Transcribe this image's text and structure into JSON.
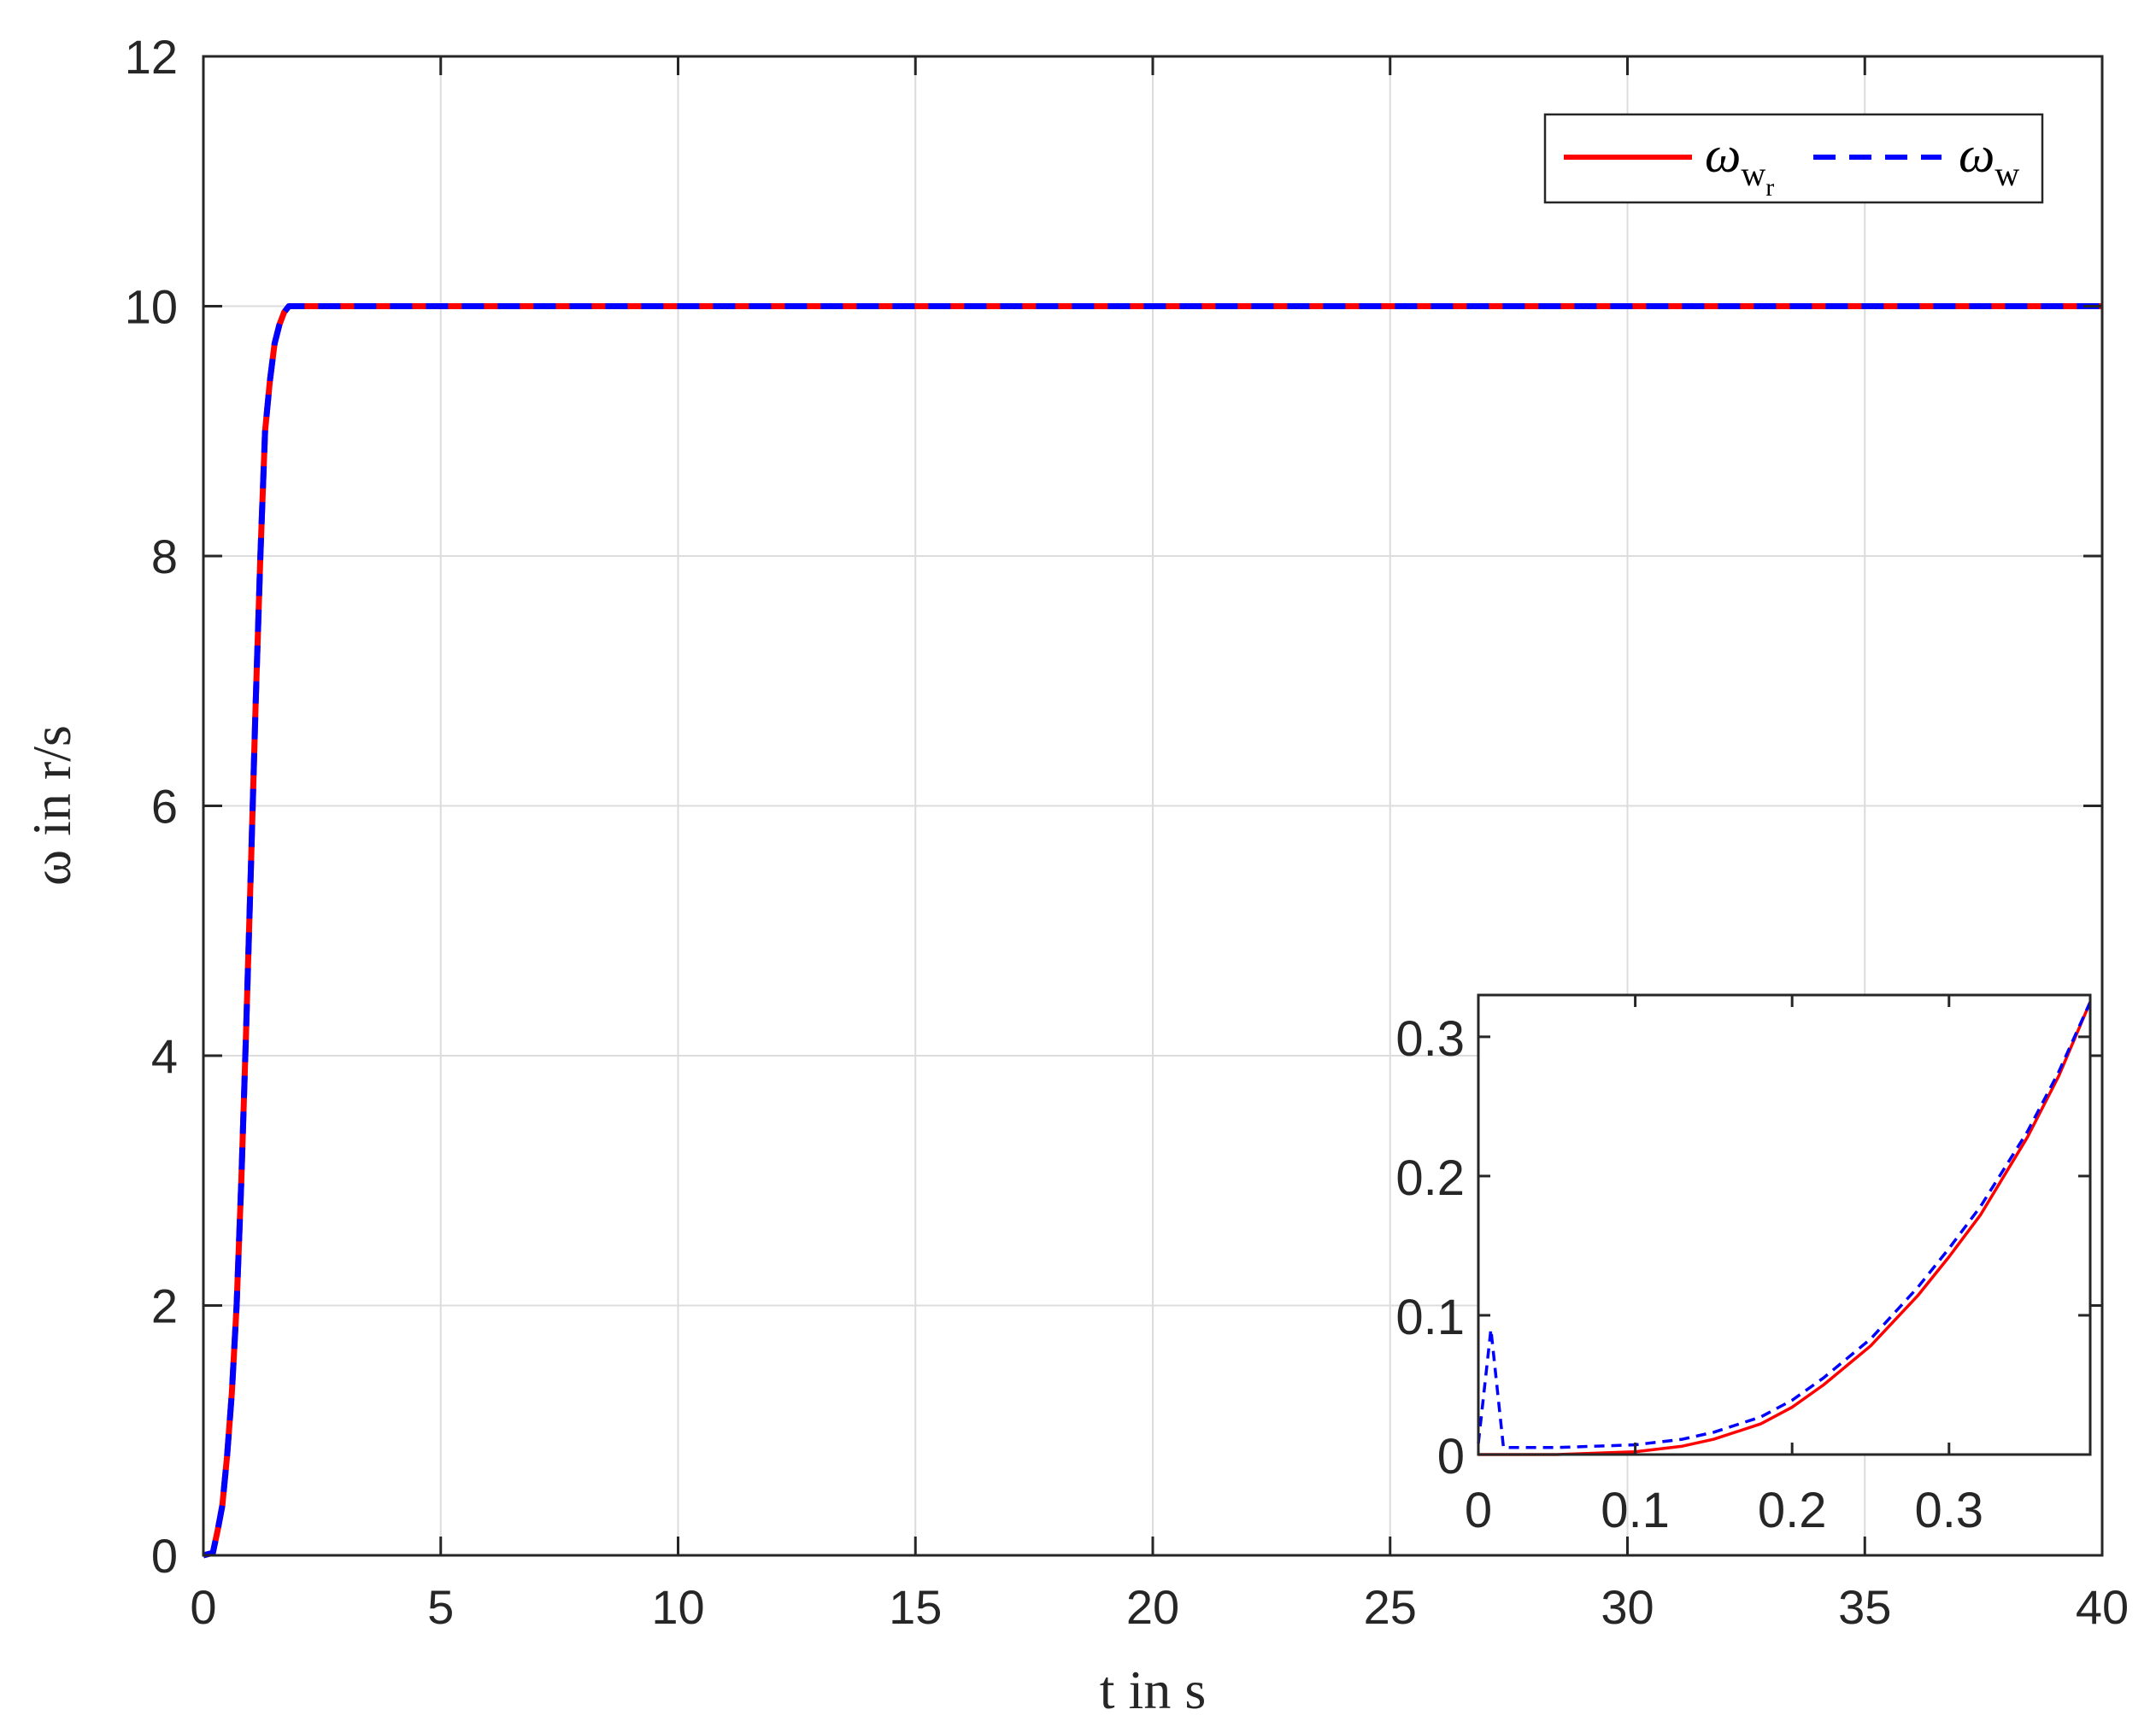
{
  "chart_data": [
    {
      "type": "line",
      "xlabel": "t in s",
      "ylabel": "ω in r/s",
      "xlim": [
        0,
        40
      ],
      "ylim": [
        0,
        12
      ],
      "xticks": [
        "0",
        "5",
        "10",
        "15",
        "20",
        "25",
        "30",
        "35",
        "40"
      ],
      "yticks": [
        "0",
        "2",
        "4",
        "6",
        "8",
        "10",
        "12"
      ],
      "grid": true,
      "legend_position": "top-right",
      "series": [
        {
          "name": "ω_w_r",
          "legend_main": "ω",
          "legend_sub": "w",
          "legend_subsub": "r",
          "color": "#ff0000",
          "style": "solid",
          "x": [
            0,
            0.2,
            0.3,
            0.4,
            0.5,
            0.6,
            0.7,
            0.8,
            0.9,
            1.0,
            1.1,
            1.2,
            1.3,
            1.4,
            1.5,
            1.6,
            1.7,
            1.8,
            2.0,
            5,
            10,
            15,
            20,
            25,
            30,
            35,
            40
          ],
          "y": [
            0,
            0.02,
            0.2,
            0.4,
            0.8,
            1.3,
            2.0,
            3.0,
            4.2,
            5.5,
            6.8,
            8.0,
            9.0,
            9.4,
            9.7,
            9.85,
            9.95,
            10.0,
            10.0,
            10.0,
            10.0,
            10.0,
            10.0,
            10.0,
            10.0,
            10.0,
            10.0
          ]
        },
        {
          "name": "ω_w",
          "legend_main": "ω",
          "legend_sub": "w",
          "color": "#0000ff",
          "style": "dashed",
          "x": [
            0,
            0.2,
            0.3,
            0.4,
            0.5,
            0.6,
            0.7,
            0.8,
            0.9,
            1.0,
            1.1,
            1.2,
            1.3,
            1.4,
            1.5,
            1.6,
            1.7,
            1.8,
            2.0,
            5,
            10,
            15,
            20,
            25,
            30,
            35,
            40
          ],
          "y": [
            0,
            0.02,
            0.2,
            0.4,
            0.8,
            1.3,
            2.0,
            3.0,
            4.2,
            5.5,
            6.8,
            8.0,
            9.0,
            9.4,
            9.7,
            9.85,
            9.95,
            10.0,
            10.0,
            10.0,
            10.0,
            10.0,
            10.0,
            10.0,
            10.0,
            10.0,
            10.0
          ]
        }
      ]
    },
    {
      "type": "line",
      "role": "inset",
      "xlim": [
        0,
        0.39
      ],
      "ylim": [
        0,
        0.33
      ],
      "xticks": [
        "0",
        "0.1",
        "0.2",
        "0.3"
      ],
      "yticks": [
        "0",
        "0.1",
        "0.2",
        "0.3"
      ],
      "grid": false,
      "series": [
        {
          "color": "#ff0000",
          "style": "solid",
          "x": [
            0,
            0.02,
            0.05,
            0.1,
            0.13,
            0.15,
            0.18,
            0.2,
            0.22,
            0.25,
            0.28,
            0.3,
            0.32,
            0.35,
            0.37,
            0.39
          ],
          "y": [
            0,
            0,
            0,
            0.002,
            0.006,
            0.011,
            0.022,
            0.034,
            0.05,
            0.078,
            0.114,
            0.142,
            0.172,
            0.228,
            0.272,
            0.325
          ]
        },
        {
          "color": "#0000ff",
          "style": "dashed",
          "x": [
            0,
            0.008,
            0.016,
            0.024,
            0.05,
            0.1,
            0.13,
            0.15,
            0.18,
            0.2,
            0.22,
            0.25,
            0.28,
            0.3,
            0.32,
            0.35,
            0.37,
            0.39
          ],
          "y": [
            0.008,
            0.09,
            0.005,
            0.005,
            0.005,
            0.007,
            0.011,
            0.016,
            0.027,
            0.039,
            0.055,
            0.083,
            0.12,
            0.148,
            0.178,
            0.232,
            0.275,
            0.325
          ]
        }
      ]
    }
  ]
}
